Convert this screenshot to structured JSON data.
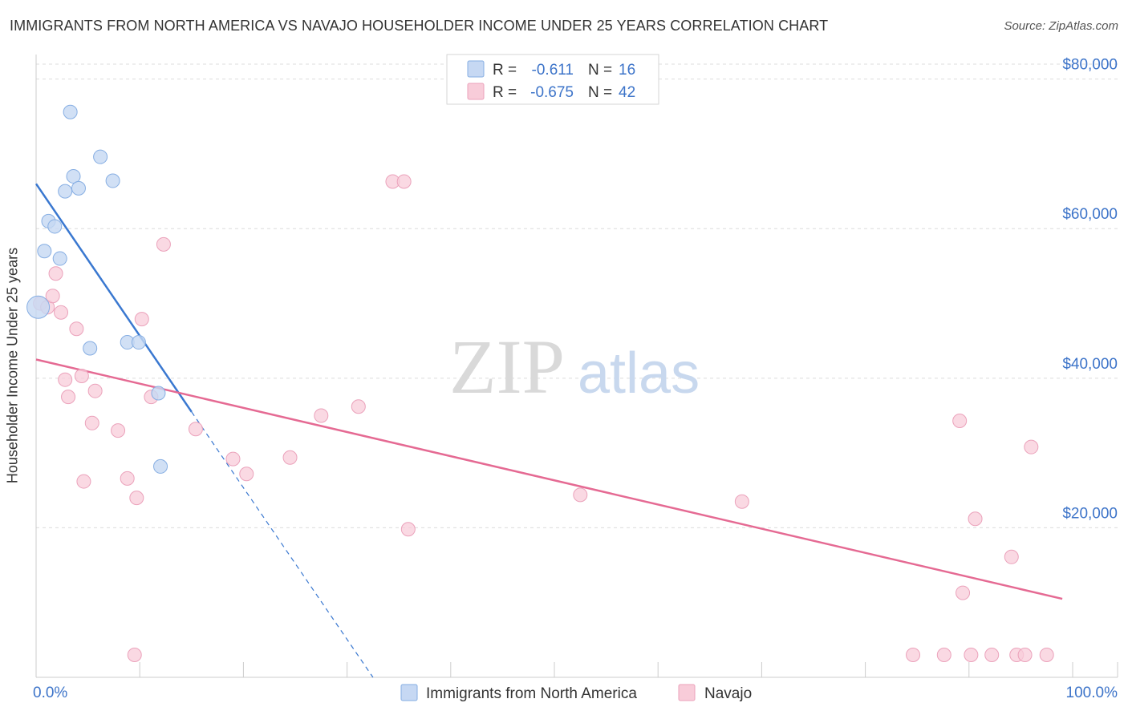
{
  "header": {
    "title": "IMMIGRANTS FROM NORTH AMERICA VS NAVAJO HOUSEHOLDER INCOME UNDER 25 YEARS CORRELATION CHART",
    "source": "Source: ZipAtlas.com"
  },
  "watermark": {
    "zip": "ZIP",
    "atlas": "atlas"
  },
  "colors": {
    "blue": "#3a78d0",
    "blue_fill": "#c6d8f3",
    "pink": "#e56a93",
    "pink_fill": "#f8ccd9",
    "axis_text": "#3d74c9",
    "grid": "#dcdcdc"
  },
  "chart_data": {
    "type": "scatter",
    "title": "IMMIGRANTS FROM NORTH AMERICA VS NAVAJO HOUSEHOLDER INCOME UNDER 25 YEARS CORRELATION CHART",
    "xlabel": "",
    "ylabel": "Householder Income Under 25 years",
    "xlim": [
      0,
      100
    ],
    "ylim": [
      0,
      82000
    ],
    "x_tick_labels": [
      "0.0%",
      "100.0%"
    ],
    "y_ticks": [
      {
        "value": 20000,
        "label": "$20,000"
      },
      {
        "value": 40000,
        "label": "$40,000"
      },
      {
        "value": 60000,
        "label": "$60,000"
      },
      {
        "value": 80000,
        "label": "$80,000"
      }
    ],
    "grid": true,
    "legend_position": "top-center",
    "series": [
      {
        "name": "Immigrants from North America",
        "color": "#3a78d0",
        "R": "-0.611",
        "N": "16",
        "points": [
          [
            0.2,
            49500
          ],
          [
            0.8,
            57000
          ],
          [
            1.2,
            61000
          ],
          [
            1.8,
            60300
          ],
          [
            2.3,
            56000
          ],
          [
            2.8,
            65000
          ],
          [
            3.3,
            75600
          ],
          [
            3.6,
            67000
          ],
          [
            4.1,
            65400
          ],
          [
            5.2,
            44000
          ],
          [
            6.2,
            69600
          ],
          [
            7.4,
            66400
          ],
          [
            8.8,
            44800
          ],
          [
            9.9,
            44800
          ],
          [
            11.8,
            38000
          ],
          [
            12.0,
            28200
          ]
        ],
        "trend": {
          "x0": 0,
          "y0": 66000,
          "x1": 15,
          "y1": 35500,
          "dash_x1": 32.5,
          "dash_y1": 0
        }
      },
      {
        "name": "Navajo",
        "color": "#e56a93",
        "R": "-0.675",
        "N": "42",
        "points": [
          [
            0.4,
            50000
          ],
          [
            1.1,
            49500
          ],
          [
            1.6,
            51000
          ],
          [
            1.9,
            54000
          ],
          [
            2.4,
            48800
          ],
          [
            2.8,
            39800
          ],
          [
            3.1,
            37500
          ],
          [
            3.9,
            46600
          ],
          [
            4.4,
            40300
          ],
          [
            4.6,
            26200
          ],
          [
            5.4,
            34000
          ],
          [
            5.7,
            38300
          ],
          [
            7.9,
            33000
          ],
          [
            8.8,
            26600
          ],
          [
            9.5,
            3000
          ],
          [
            9.7,
            24000
          ],
          [
            10.2,
            47900
          ],
          [
            11.1,
            37500
          ],
          [
            12.3,
            57900
          ],
          [
            15.4,
            33200
          ],
          [
            19.0,
            29200
          ],
          [
            20.3,
            27200
          ],
          [
            24.5,
            29400
          ],
          [
            27.5,
            35000
          ],
          [
            31.1,
            36200
          ],
          [
            34.4,
            66300
          ],
          [
            35.5,
            66300
          ],
          [
            35.9,
            19800
          ],
          [
            52.5,
            24400
          ],
          [
            68.1,
            23500
          ],
          [
            84.6,
            3000
          ],
          [
            87.6,
            3000
          ],
          [
            89.1,
            34300
          ],
          [
            89.4,
            11300
          ],
          [
            90.2,
            3000
          ],
          [
            90.6,
            21200
          ],
          [
            92.2,
            3000
          ],
          [
            94.1,
            16100
          ],
          [
            94.6,
            3000
          ],
          [
            95.4,
            3000
          ],
          [
            96.0,
            30800
          ],
          [
            97.5,
            3000
          ]
        ],
        "trend": {
          "x0": 0,
          "y0": 42500,
          "x1": 99,
          "y1": 10500
        }
      }
    ]
  }
}
